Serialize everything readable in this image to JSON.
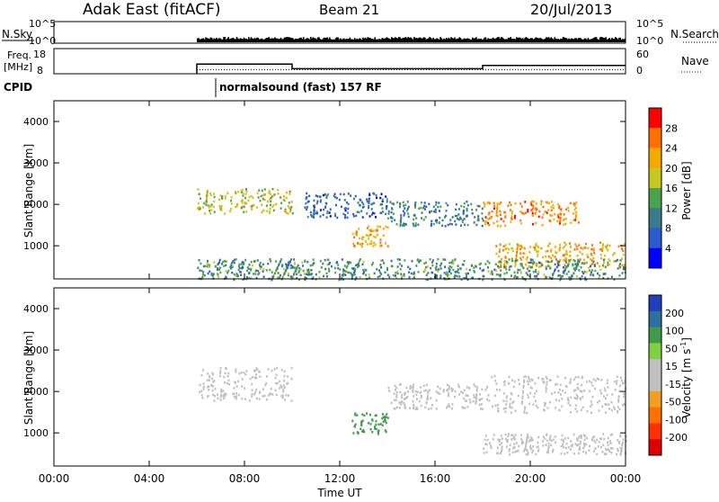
{
  "header": {
    "station": "Adak East (fitACF)",
    "beam": "Beam 21",
    "date": "20/Jul/2013"
  },
  "strips": {
    "nsky": {
      "label": "N.Sky",
      "right_label": "N.Search",
      "yticks_left": [
        "10^5",
        "10^0"
      ],
      "yticks_right": [
        "10^5",
        "10^0"
      ]
    },
    "freq": {
      "label_line1": "Freq.",
      "label_line2": "[MHz]",
      "right_label": "Nave",
      "yticks_left": [
        "18",
        "8"
      ],
      "yticks_right": [
        "60",
        "0"
      ]
    },
    "cpid": {
      "label": "CPID",
      "mode_text": "normalsound (fast) 157 RF"
    }
  },
  "panels": {
    "power": {
      "ylabel": "Slant Range [km]",
      "colorbar_label": "Power [dB]"
    },
    "velocity": {
      "ylabel": "Slant Range [km]",
      "colorbar_label_main": "Velocity [m s",
      "colorbar_label_sup": "-1",
      "colorbar_label_end": "]"
    }
  },
  "xaxis_label": "Time UT",
  "colors": {
    "power_scale": [
      "#0000ff",
      "#2a5bd1",
      "#3a7a8a",
      "#4aa24a",
      "#c8c820",
      "#f5a800",
      "#ff7000",
      "#ff0000"
    ],
    "velocity_scale": [
      "#1f3fbf",
      "#2e6fa0",
      "#3f9a4a",
      "#7fd13f",
      "#c0c0c0",
      "#c0c0c0",
      "#f0a020",
      "#ff7000",
      "#ff3000",
      "#e00000"
    ]
  },
  "chart_data": [
    {
      "type": "line",
      "title": "N.Sky / N.Search",
      "x_range_hours": [
        0,
        24
      ],
      "series": [
        {
          "name": "N.Sky",
          "note": "noise level, data begins at 06:00"
        },
        {
          "name": "N.Search",
          "note": "dotted"
        }
      ]
    },
    {
      "type": "line",
      "x_range_hours": [
        0,
        24
      ],
      "ylim_left": [
        8,
        18
      ],
      "ylim_right": [
        0,
        60
      ],
      "series": [
        {
          "name": "Freq. [MHz]",
          "x": [
            "06:00",
            "10:00",
            "10:00",
            "18:00",
            "18:00",
            "24:00"
          ],
          "values": [
            12.0,
            12.0,
            10.2,
            10.2,
            11.5,
            11.5
          ]
        },
        {
          "name": "Nave",
          "x": [
            "06:00",
            "24:00"
          ],
          "values": [
            10,
            10
          ]
        }
      ]
    },
    {
      "type": "heatmap",
      "x_label": "Time UT",
      "y_label": "Slant Range [km]",
      "x_ticks": [
        "00:00",
        "04:00",
        "08:00",
        "12:00",
        "16:00",
        "20:00",
        "00:00"
      ],
      "y_ticks": [
        1000,
        2000,
        3000,
        4000
      ],
      "ylim": [
        200,
        4500
      ],
      "colorbar": {
        "label": "Power [dB]",
        "ticks": [
          4,
          8,
          12,
          16,
          20,
          24,
          28
        ],
        "range": [
          0,
          32
        ]
      },
      "regions": [
        {
          "x": [
            "06:00",
            "10:00"
          ],
          "y": [
            1800,
            2400
          ],
          "value": 18
        },
        {
          "x": [
            "10:30",
            "14:00"
          ],
          "y": [
            1700,
            2300
          ],
          "value": 8
        },
        {
          "x": [
            "12:30",
            "14:00"
          ],
          "y": [
            1000,
            1500
          ],
          "value": 22
        },
        {
          "x": [
            "14:00",
            "18:00"
          ],
          "y": [
            1500,
            2100
          ],
          "value": 10
        },
        {
          "x": [
            "18:00",
            "22:00"
          ],
          "y": [
            1500,
            2100
          ],
          "value": 24
        },
        {
          "x": [
            "18:30",
            "24:00"
          ],
          "y": [
            500,
            1100
          ],
          "value": 22
        },
        {
          "x": [
            "06:00",
            "24:00"
          ],
          "y": [
            200,
            700
          ],
          "value": 12
        }
      ]
    },
    {
      "type": "heatmap",
      "x_label": "Time UT",
      "y_label": "Slant Range [km]",
      "x_ticks": [
        "00:00",
        "04:00",
        "08:00",
        "12:00",
        "16:00",
        "20:00",
        "00:00"
      ],
      "y_ticks": [
        1000,
        2000,
        3000,
        4000
      ],
      "ylim": [
        200,
        4500
      ],
      "colorbar": {
        "label": "Velocity [m s-1]",
        "ticks": [
          200,
          100,
          50,
          15,
          -15,
          -50,
          -100,
          -200
        ],
        "range": [
          -250,
          250
        ]
      },
      "regions": [
        {
          "x": [
            "06:00",
            "10:00"
          ],
          "y": [
            1800,
            2600
          ],
          "value": 0
        },
        {
          "x": [
            "12:30",
            "14:00"
          ],
          "y": [
            1000,
            1500
          ],
          "value": 80
        },
        {
          "x": [
            "14:00",
            "18:00"
          ],
          "y": [
            1600,
            2200
          ],
          "value": -10
        },
        {
          "x": [
            "18:00",
            "24:00"
          ],
          "y": [
            1500,
            2400
          ],
          "value": 0
        },
        {
          "x": [
            "18:00",
            "24:00"
          ],
          "y": [
            500,
            1000
          ],
          "value": 0
        }
      ]
    }
  ]
}
